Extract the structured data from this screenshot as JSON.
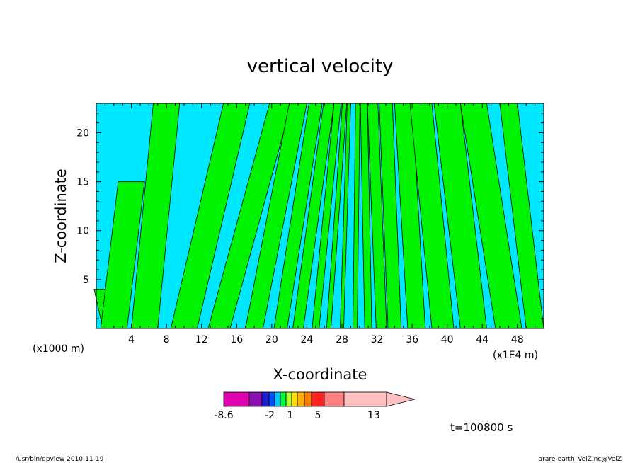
{
  "chart_data": {
    "type": "heatmap",
    "title": "vertical velocity",
    "xlabel": "X-coordinate",
    "ylabel": "Z-coordinate",
    "x_unit_left": "(x1000 m)",
    "x_unit_right": "(x1E4 m)",
    "x_ticks": [
      "4",
      "8",
      "12",
      "16",
      "20",
      "24",
      "28",
      "32",
      "36",
      "40",
      "44",
      "48"
    ],
    "y_ticks": [
      "5",
      "10",
      "15",
      "20"
    ],
    "xlim": [
      0,
      51
    ],
    "ylim": [
      0,
      23
    ],
    "colorbar": {
      "tick_labels": [
        "-8.6",
        "-2",
        "1",
        "5",
        "13"
      ],
      "colors": [
        "#e000b0",
        "#8a10b0",
        "#2020d0",
        "#0050ff",
        "#00c8ff",
        "#00ff40",
        "#b0ff30",
        "#ffe000",
        "#ffb000",
        "#ff8000",
        "#ff2020",
        "#ff8080",
        "#ffc0c0"
      ]
    },
    "field_colors": {
      "negative_small": "#00e8ff",
      "positive_small": "#00f400"
    },
    "time_label": "t=100800 s"
  },
  "footer": {
    "left": "/usr/bin/gpview   2010-11-19",
    "right": "arare-earth_VelZ.nc@VelZ"
  }
}
